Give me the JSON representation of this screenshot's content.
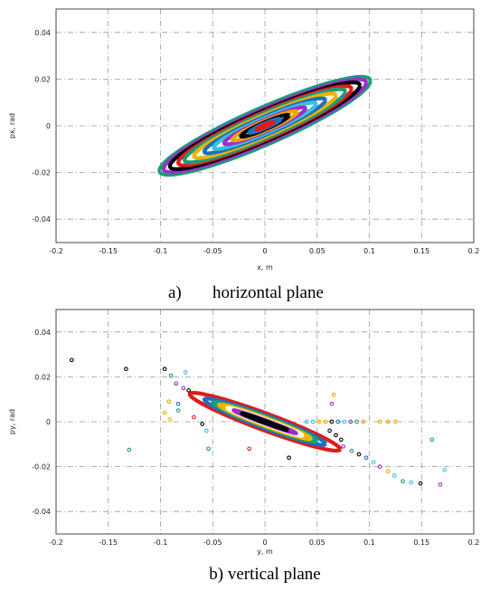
{
  "chart_data": [
    {
      "type": "scatter",
      "panel": "a",
      "caption_letter": "a)",
      "caption_text": "horizontal plane",
      "xlabel": "x, m",
      "ylabel": "px, rad",
      "xlim": [
        -0.2,
        0.2
      ],
      "ylim": [
        -0.05,
        0.05
      ],
      "xticks": [
        "-0.2",
        "-0.15",
        "-0.1",
        "-0.05",
        "0",
        "0.05",
        "0.1",
        "0.15",
        "0.2"
      ],
      "yticks": [
        "-0.04",
        "-0.02",
        "0",
        "0.02",
        "0.04"
      ],
      "grid": true,
      "tilt_slope": 0.19,
      "series": [
        {
          "color": "#1a9e78",
          "x_amp": 0.101,
          "width": 0.0085
        },
        {
          "color": "#9b30c8",
          "x_amp": 0.097,
          "width": 0.0075
        },
        {
          "color": "#000000",
          "x_amp": 0.091,
          "width": 0.0068
        },
        {
          "color": "#e01b1b",
          "x_amp": 0.083,
          "width": 0.0062
        },
        {
          "color": "#1a9e78",
          "x_amp": 0.077,
          "width": 0.0056
        },
        {
          "color": "#f0b400",
          "x_amp": 0.068,
          "width": 0.0048
        },
        {
          "color": "#1e6fbf",
          "x_amp": 0.058,
          "width": 0.0041
        },
        {
          "color": "#3cc0e0",
          "x_amp": 0.049,
          "width": 0.0034
        },
        {
          "color": "#9b30c8",
          "x_amp": 0.039,
          "width": 0.0027
        },
        {
          "color": "#e8a800",
          "x_amp": 0.031,
          "width": 0.0022
        },
        {
          "color": "#000000",
          "x_amp": 0.023,
          "width": 0.0016
        },
        {
          "color": "#1e6fbf",
          "x_amp": 0.015,
          "width": 0.0011
        },
        {
          "color": "#e01b1b",
          "x_amp": 0.008,
          "width": 0.0006
        }
      ]
    },
    {
      "type": "scatter",
      "panel": "b",
      "caption_letter": "",
      "caption_text": "b) vertical plane",
      "xlabel": "y, m",
      "ylabel": "py, rad",
      "xlim": [
        -0.2,
        0.2
      ],
      "ylim": [
        -0.05,
        0.05
      ],
      "xticks": [
        "-0.2",
        "-0.15",
        "-0.1",
        "-0.05",
        "0",
        "0.05",
        "0.1",
        "0.15",
        "0.2"
      ],
      "yticks": [
        "-0.04",
        "-0.02",
        "0",
        "0.02",
        "0.04"
      ],
      "grid": true,
      "tilt_slope": -0.17,
      "series": [
        {
          "color": "#e01b1b",
          "x_amp": 0.072,
          "width": 0.004
        },
        {
          "color": "#1e6fbf",
          "x_amp": 0.058,
          "width": 0.003
        },
        {
          "color": "#1a9e78",
          "x_amp": 0.05,
          "width": 0.0024
        },
        {
          "color": "#f0b400",
          "x_amp": 0.044,
          "width": 0.0019
        },
        {
          "color": "#ffffff",
          "x_amp": 0.036,
          "width": 0.0012
        },
        {
          "color": "#9b30c8",
          "x_amp": 0.03,
          "width": 0.0008
        },
        {
          "color": "#000000",
          "x_amp": 0.022,
          "width": 0.0005
        }
      ],
      "scatter_points": [
        {
          "x": -0.185,
          "y": 0.0275,
          "color": "#000000"
        },
        {
          "x": -0.133,
          "y": 0.0235,
          "color": "#000000"
        },
        {
          "x": -0.096,
          "y": 0.0235,
          "color": "#000000"
        },
        {
          "x": -0.09,
          "y": 0.0205,
          "color": "#1a9e78"
        },
        {
          "x": -0.076,
          "y": 0.022,
          "color": "#3cc0e0"
        },
        {
          "x": -0.085,
          "y": 0.017,
          "color": "#9b30c8"
        },
        {
          "x": -0.078,
          "y": 0.015,
          "color": "#9b30c8"
        },
        {
          "x": -0.073,
          "y": 0.014,
          "color": "#000000"
        },
        {
          "x": -0.092,
          "y": 0.009,
          "color": "#e8a800"
        },
        {
          "x": -0.083,
          "y": 0.008,
          "color": "#1e6fbf"
        },
        {
          "x": -0.096,
          "y": 0.004,
          "color": "#f0b400"
        },
        {
          "x": -0.091,
          "y": 0.001,
          "color": "#f0b400"
        },
        {
          "x": -0.083,
          "y": 0.005,
          "color": "#1a9e78"
        },
        {
          "x": -0.068,
          "y": 0.002,
          "color": "#e01b1b"
        },
        {
          "x": -0.06,
          "y": -0.001,
          "color": "#000000"
        },
        {
          "x": -0.056,
          "y": -0.004,
          "color": "#3cc0e0"
        },
        {
          "x": -0.054,
          "y": -0.012,
          "color": "#1a9e78"
        },
        {
          "x": -0.015,
          "y": -0.012,
          "color": "#e01b1b"
        },
        {
          "x": 0.023,
          "y": -0.016,
          "color": "#000000"
        },
        {
          "x": -0.13,
          "y": -0.0125,
          "color": "#1a9e78"
        },
        {
          "x": 0.066,
          "y": 0.012,
          "color": "#e8a800"
        },
        {
          "x": 0.064,
          "y": 0.008,
          "color": "#9b30c8"
        },
        {
          "x": 0.04,
          "y": 0.0,
          "color": "#3cc0e0"
        },
        {
          "x": 0.046,
          "y": 0.0,
          "color": "#3cc0e0"
        },
        {
          "x": 0.052,
          "y": 0.0,
          "color": "#f0b400"
        },
        {
          "x": 0.058,
          "y": 0.0,
          "color": "#e8a800"
        },
        {
          "x": 0.064,
          "y": 0.0,
          "color": "#000000"
        },
        {
          "x": 0.07,
          "y": 0.0,
          "color": "#1e6fbf"
        },
        {
          "x": 0.076,
          "y": 0.0,
          "color": "#3cc0e0"
        },
        {
          "x": 0.082,
          "y": 0.0,
          "color": "#9b30c8"
        },
        {
          "x": 0.088,
          "y": 0.0,
          "color": "#1a9e78"
        },
        {
          "x": 0.094,
          "y": 0.0,
          "color": "#e8a800"
        },
        {
          "x": 0.11,
          "y": 0.0,
          "color": "#e8a800"
        },
        {
          "x": 0.118,
          "y": 0.0,
          "color": "#e8a800"
        },
        {
          "x": 0.125,
          "y": 0.0,
          "color": "#e8a800"
        },
        {
          "x": 0.062,
          "y": -0.004,
          "color": "#000000"
        },
        {
          "x": 0.068,
          "y": -0.006,
          "color": "#000000"
        },
        {
          "x": 0.073,
          "y": -0.008,
          "color": "#000000"
        },
        {
          "x": 0.075,
          "y": -0.011,
          "color": "#9b30c8"
        },
        {
          "x": 0.083,
          "y": -0.013,
          "color": "#1a9e78"
        },
        {
          "x": 0.09,
          "y": -0.0145,
          "color": "#000000"
        },
        {
          "x": 0.097,
          "y": -0.016,
          "color": "#1e6fbf"
        },
        {
          "x": 0.104,
          "y": -0.018,
          "color": "#3cc0e0"
        },
        {
          "x": 0.11,
          "y": -0.02,
          "color": "#9b30c8"
        },
        {
          "x": 0.118,
          "y": -0.022,
          "color": "#e8a800"
        },
        {
          "x": 0.124,
          "y": -0.024,
          "color": "#3cc0e0"
        },
        {
          "x": 0.132,
          "y": -0.0265,
          "color": "#1a9e78"
        },
        {
          "x": 0.14,
          "y": -0.027,
          "color": "#3cc0e0"
        },
        {
          "x": 0.149,
          "y": -0.0275,
          "color": "#000000"
        },
        {
          "x": 0.16,
          "y": -0.008,
          "color": "#1a9e78"
        },
        {
          "x": 0.172,
          "y": -0.0215,
          "color": "#3cc0e0"
        },
        {
          "x": 0.168,
          "y": -0.028,
          "color": "#9b30c8"
        }
      ]
    }
  ]
}
